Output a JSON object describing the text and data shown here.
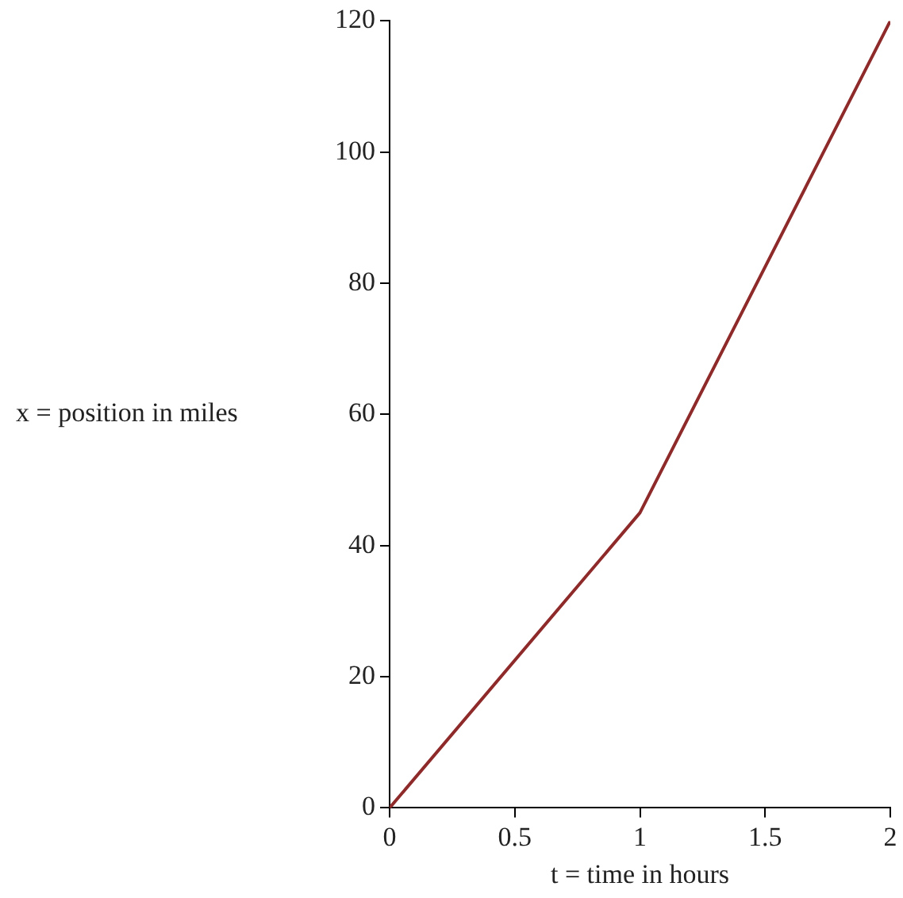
{
  "chart_data": {
    "type": "line",
    "xlabel": "t = time in hours",
    "ylabel": "x = position in miles",
    "x": [
      0,
      1,
      2
    ],
    "series": [
      {
        "color": "#8e2a2a",
        "values": [
          0,
          45,
          120
        ]
      }
    ],
    "xlim": [
      0,
      2
    ],
    "xticks": [
      0,
      0.5,
      1,
      1.5,
      2
    ],
    "ylim": [
      0,
      120
    ],
    "yticks": [
      0,
      20,
      40,
      60,
      80,
      100,
      120
    ],
    "grid": false,
    "legend": false,
    "marker": "none",
    "line_style": "solid"
  }
}
